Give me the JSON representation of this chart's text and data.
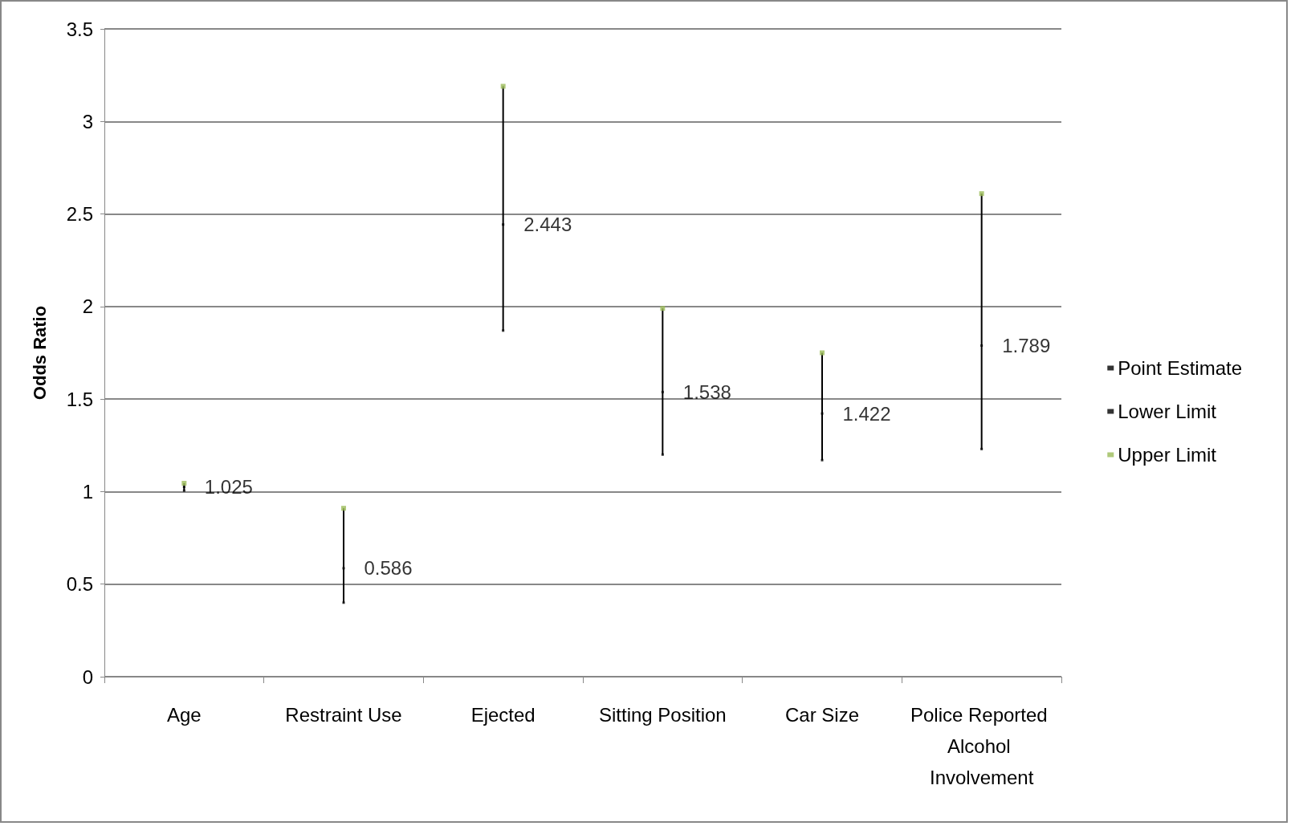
{
  "chart_data": {
    "type": "scatter",
    "ylabel": "Odds Ratio",
    "categories": [
      "Age",
      "Restraint Use",
      "Ejected",
      "Sitting Position",
      "Car Size",
      "Police Reported Alcohol Involvement"
    ],
    "series": [
      {
        "name": "Point Estimate",
        "values": [
          1.025,
          0.586,
          2.443,
          1.538,
          1.422,
          1.789
        ],
        "color": "#000000",
        "marker": "square",
        "data_labels": true
      },
      {
        "name": "Lower Limit",
        "color": "#000000",
        "values": [
          1.005,
          0.4,
          1.87,
          1.2,
          1.17,
          1.23
        ],
        "marker": "square"
      },
      {
        "name": "Upper Limit",
        "color": "#9bbb59",
        "values": [
          1.045,
          0.91,
          3.19,
          1.99,
          1.75,
          2.61
        ],
        "marker": "square"
      }
    ],
    "ylim": [
      0,
      3.5
    ],
    "yticks": [
      0,
      0.5,
      1,
      1.5,
      2,
      2.5,
      3,
      3.5
    ],
    "grid": "y",
    "legend": "right"
  }
}
